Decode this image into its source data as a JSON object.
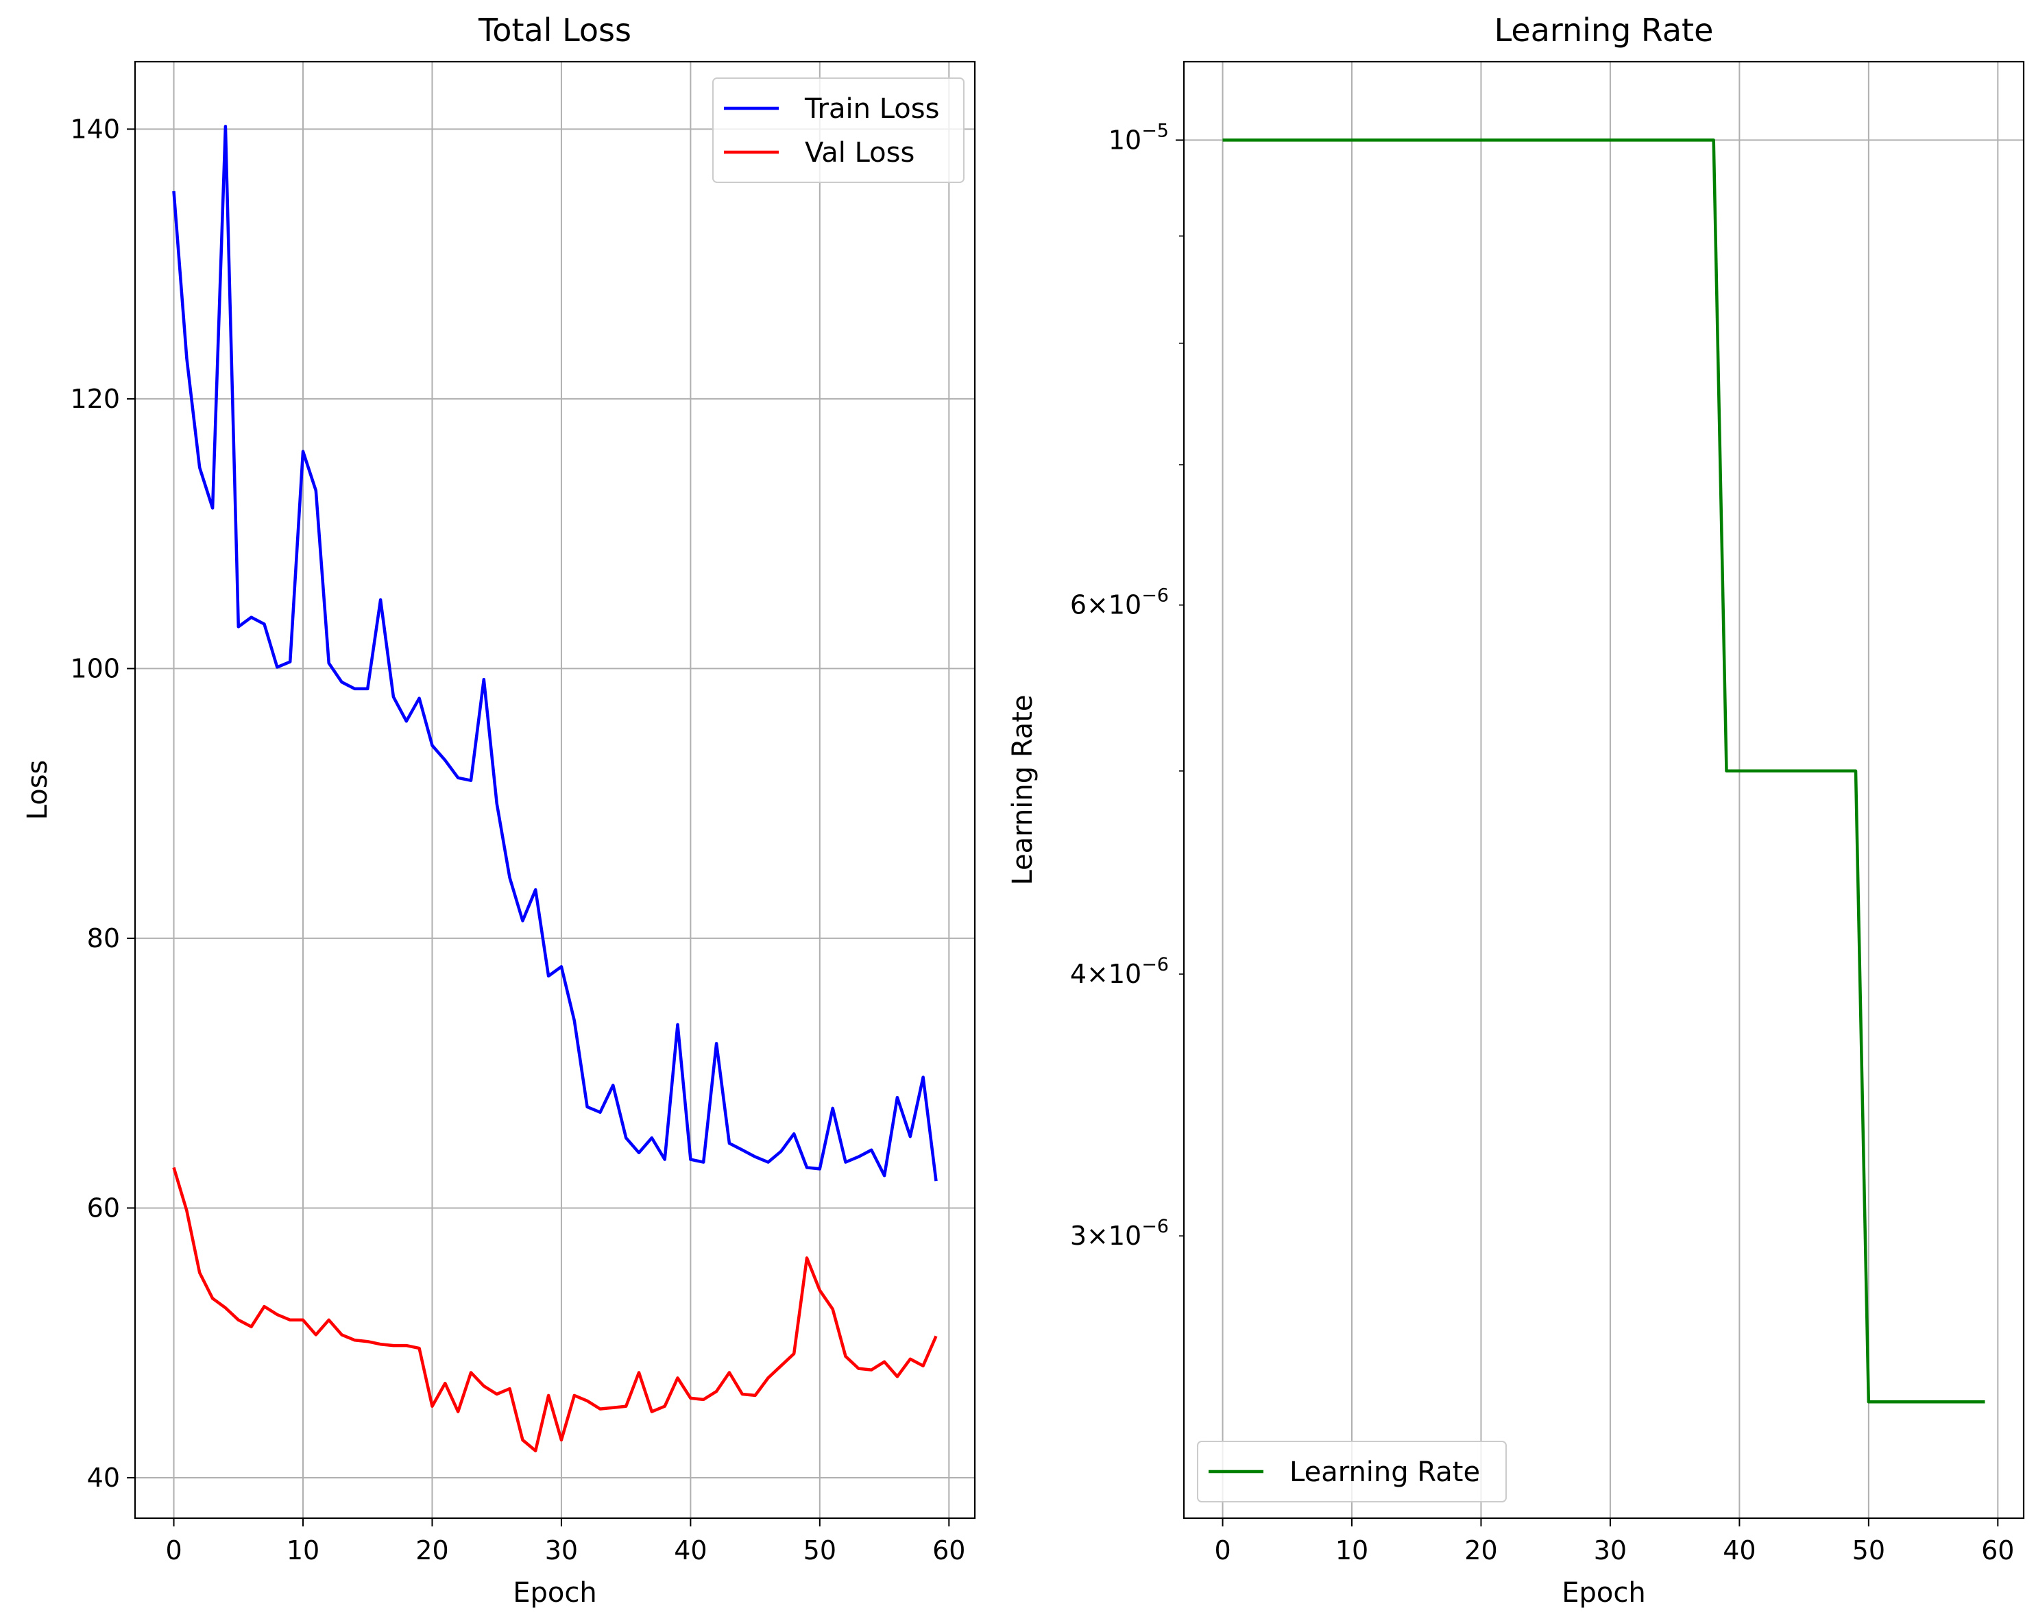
{
  "chart_data": [
    {
      "type": "line",
      "title": "Total Loss",
      "xlabel": "Epoch",
      "ylabel": "Loss",
      "xlim": [
        -3,
        62
      ],
      "ylim": [
        37,
        145
      ],
      "xticks": [
        0,
        10,
        20,
        30,
        40,
        50,
        60
      ],
      "yticks": [
        40,
        60,
        80,
        100,
        120,
        140
      ],
      "xtick_labels": [
        "0",
        "10",
        "20",
        "30",
        "40",
        "50",
        "60"
      ],
      "ytick_labels": [
        "40",
        "60",
        "80",
        "100",
        "120",
        "140"
      ],
      "grid": true,
      "legend": "top-right",
      "x": [
        0,
        1,
        2,
        3,
        4,
        5,
        6,
        7,
        8,
        9,
        10,
        11,
        12,
        13,
        14,
        15,
        16,
        17,
        18,
        19,
        20,
        21,
        22,
        23,
        24,
        25,
        26,
        27,
        28,
        29,
        30,
        31,
        32,
        33,
        34,
        35,
        36,
        37,
        38,
        39,
        40,
        41,
        42,
        43,
        44,
        45,
        46,
        47,
        48,
        49,
        50,
        51,
        52,
        53,
        54,
        55,
        56,
        57,
        58,
        59
      ],
      "series": [
        {
          "name": "Train Loss",
          "color": "#0000ff",
          "values": [
            135.4,
            123.0,
            114.9,
            111.9,
            140.2,
            103.1,
            103.8,
            103.3,
            100.1,
            100.5,
            116.1,
            113.2,
            100.4,
            99.0,
            98.5,
            98.5,
            105.1,
            97.9,
            96.1,
            97.8,
            94.3,
            93.2,
            91.9,
            91.7,
            99.2,
            90.0,
            84.5,
            81.3,
            83.6,
            77.2,
            77.9,
            73.9,
            67.5,
            67.1,
            69.1,
            65.2,
            64.1,
            65.2,
            63.6,
            73.6,
            63.6,
            63.4,
            72.2,
            64.8,
            64.3,
            63.8,
            63.4,
            64.2,
            65.5,
            63.0,
            62.9,
            67.4,
            63.4,
            63.8,
            64.3,
            62.4,
            68.2,
            65.3,
            69.7,
            62.0
          ]
        },
        {
          "name": "Val Loss",
          "color": "#ff0000",
          "values": [
            63.0,
            59.8,
            55.2,
            53.3,
            52.6,
            51.7,
            51.2,
            52.7,
            52.1,
            51.7,
            51.7,
            50.6,
            51.7,
            50.6,
            50.2,
            50.1,
            49.9,
            49.8,
            49.8,
            49.6,
            45.3,
            47.0,
            44.9,
            47.8,
            46.8,
            46.2,
            46.6,
            42.8,
            42.0,
            46.1,
            42.8,
            46.1,
            45.7,
            45.1,
            45.2,
            45.3,
            47.8,
            44.9,
            45.3,
            47.4,
            45.9,
            45.8,
            46.4,
            47.8,
            46.2,
            46.1,
            47.4,
            48.3,
            49.2,
            56.3,
            53.9,
            52.5,
            49.0,
            48.1,
            48.0,
            48.6,
            47.5,
            48.8,
            48.3,
            50.5
          ]
        }
      ]
    },
    {
      "type": "line",
      "title": "Learning Rate",
      "xlabel": "Epoch",
      "ylabel": "Learning Rate",
      "yscale": "log",
      "xlim": [
        -3,
        62
      ],
      "ylim": [
        2.2e-06,
        1.09e-05
      ],
      "xticks": [
        0,
        10,
        20,
        30,
        40,
        50,
        60
      ],
      "xtick_labels": [
        "0",
        "10",
        "20",
        "30",
        "40",
        "50",
        "60"
      ],
      "yticks_major": [
        {
          "value": 1e-05,
          "base": "10",
          "exp": "−5"
        }
      ],
      "yticks_minor_labeled": [
        {
          "value": 6e-06,
          "mant": "6",
          "base": "10",
          "exp": "−6"
        },
        {
          "value": 4e-06,
          "mant": "4",
          "base": "10",
          "exp": "−6"
        },
        {
          "value": 3e-06,
          "mant": "3",
          "base": "10",
          "exp": "−6"
        }
      ],
      "yticks_minor_unlabeled": [
        9e-06,
        8e-06,
        7e-06,
        5e-06
      ],
      "grid": true,
      "legend": "bottom-left",
      "series": [
        {
          "name": "Learning Rate",
          "color": "#008000",
          "x": [
            0,
            38,
            39,
            49,
            50,
            59
          ],
          "values": [
            1e-05,
            1e-05,
            5e-06,
            5e-06,
            2.5e-06,
            2.5e-06
          ]
        }
      ]
    }
  ]
}
